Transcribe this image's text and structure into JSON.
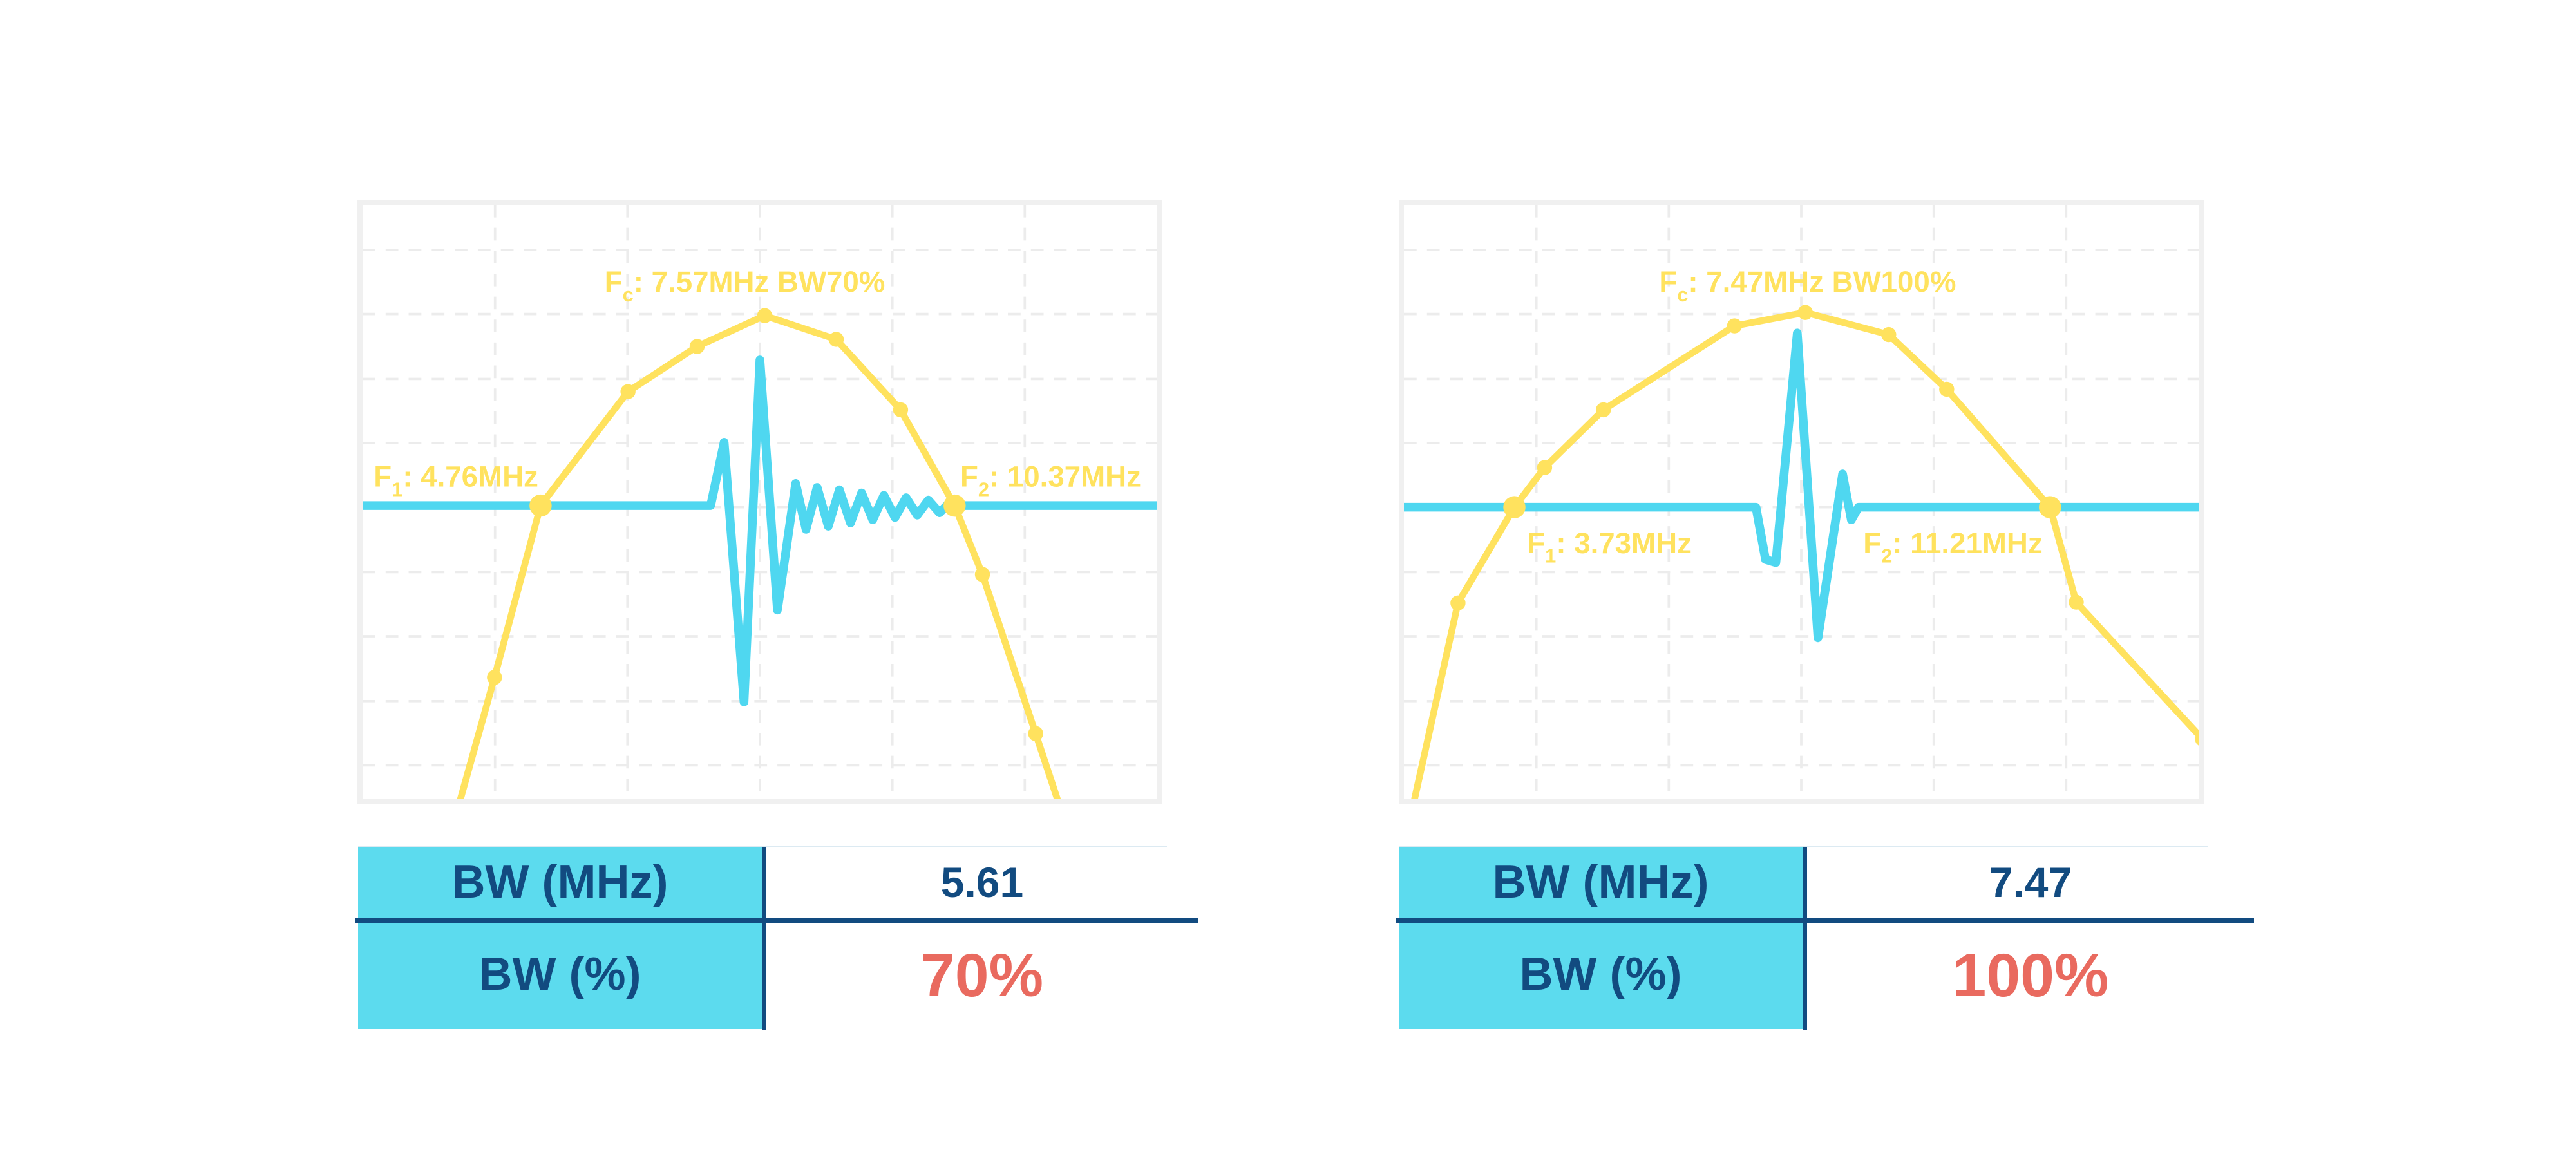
{
  "page": {
    "background": "#FFFFFF",
    "description_colors": {
      "spectrum_yellow": "#FFE25E",
      "waveform_cyan": "#4FD7F0",
      "table_header_cyan": "#5CDBEE",
      "navy_text": "#124B80",
      "percent_red": "#E96A5F",
      "grid_gray": "#ECECEC",
      "frame_gray": "#F0F0F0",
      "table_topline": "#DCEAF2"
    }
  },
  "chart_data": [
    {
      "id": "bw70",
      "type": "line",
      "title": "Fc: 7.57MHz BW70%",
      "x_unit": "MHz",
      "fc_mhz": 7.57,
      "f1_mhz": 4.76,
      "f2_mhz": 10.37,
      "bw_mhz": 5.61,
      "bw_percent": 70,
      "coord_space": "plot-area fractions scaled to 1000(w) x 750(h), y down",
      "series": [
        {
          "name": "spectrum",
          "role": "yellow-curve-with-dots"
        },
        {
          "name": "pulse-echo waveform",
          "role": "cyan-trace-on--6dB-line"
        }
      ],
      "spectrum_points": [
        [
          120,
          762,
          0
        ],
        [
          166,
          597,
          1
        ],
        [
          224,
          380,
          2
        ],
        [
          334,
          236,
          1
        ],
        [
          421,
          179,
          1
        ],
        [
          506,
          140,
          1
        ],
        [
          596,
          170,
          1
        ],
        [
          677,
          259,
          1
        ],
        [
          745,
          380,
          2
        ],
        [
          780,
          467,
          1
        ],
        [
          847,
          668,
          1
        ],
        [
          880,
          768,
          0
        ]
      ],
      "pulse_points": [
        [
          0,
          380
        ],
        [
          438,
          380
        ],
        [
          455,
          300
        ],
        [
          480,
          628
        ],
        [
          500,
          196
        ],
        [
          522,
          512
        ],
        [
          545,
          352
        ],
        [
          558,
          410
        ],
        [
          572,
          357
        ],
        [
          586,
          406
        ],
        [
          600,
          360
        ],
        [
          614,
          402
        ],
        [
          628,
          364
        ],
        [
          642,
          398
        ],
        [
          656,
          367
        ],
        [
          670,
          395
        ],
        [
          684,
          370
        ],
        [
          698,
          392
        ],
        [
          712,
          373
        ],
        [
          726,
          389
        ],
        [
          738,
          377
        ],
        [
          745,
          380
        ],
        [
          1000,
          380
        ]
      ],
      "annotations": {
        "fc": {
          "pre": "F",
          "sub": "c",
          "rest": ": 7.57MHz BW70%",
          "x": 481,
          "y": 110,
          "anchor": "middle"
        },
        "f1": {
          "pre": "F",
          "sub": "1",
          "rest": ": 4.76MHz",
          "x": 14,
          "y": 356,
          "anchor": "start"
        },
        "f2": {
          "pre": "F",
          "sub": "2",
          "rest": ": 10.37MHz",
          "x": 752,
          "y": 356,
          "anchor": "start"
        }
      },
      "table": {
        "rows": [
          {
            "label": "BW (MHz)",
            "value": "5.61",
            "highlight": false
          },
          {
            "label": "BW (%)",
            "value": "70%",
            "highlight": true
          }
        ]
      }
    },
    {
      "id": "bw100",
      "type": "line",
      "title": "Fc: 7.47MHz BW100%",
      "x_unit": "MHz",
      "fc_mhz": 7.47,
      "f1_mhz": 3.73,
      "f2_mhz": 11.21,
      "bw_mhz": 7.47,
      "bw_percent": 100,
      "coord_space": "plot-area fractions scaled to 1000(w) x 750(h), y down",
      "series": [
        {
          "name": "spectrum",
          "role": "yellow-curve-with-dots"
        },
        {
          "name": "pulse-echo waveform",
          "role": "cyan-trace-on--6dB-line"
        }
      ],
      "spectrum_points": [
        [
          8,
          775,
          0
        ],
        [
          68,
          503,
          1
        ],
        [
          139,
          382,
          2
        ],
        [
          177,
          332,
          1
        ],
        [
          251,
          259,
          1
        ],
        [
          416,
          153,
          1
        ],
        [
          505,
          136,
          1
        ],
        [
          610,
          164,
          1
        ],
        [
          683,
          233,
          1
        ],
        [
          813,
          382,
          2
        ],
        [
          846,
          502,
          1
        ],
        [
          1005,
          675,
          1
        ]
      ],
      "pulse_points": [
        [
          0,
          382
        ],
        [
          443,
          382
        ],
        [
          455,
          448
        ],
        [
          468,
          452
        ],
        [
          495,
          162
        ],
        [
          521,
          547
        ],
        [
          552,
          340
        ],
        [
          563,
          398
        ],
        [
          572,
          382
        ],
        [
          1000,
          382
        ]
      ],
      "annotations": {
        "fc": {
          "pre": "F",
          "sub": "c",
          "rest": ": 7.47MHz BW100%",
          "x": 508,
          "y": 110,
          "anchor": "middle"
        },
        "f1": {
          "pre": "F",
          "sub": "1",
          "rest": ": 3.73MHz",
          "x": 155,
          "y": 440,
          "anchor": "start"
        },
        "f2": {
          "pre": "F",
          "sub": "2",
          "rest": ": 11.21MHz",
          "x": 578,
          "y": 440,
          "anchor": "start"
        }
      },
      "table": {
        "rows": [
          {
            "label": "BW (MHz)",
            "value": "7.47",
            "highlight": false
          },
          {
            "label": "BW (%)",
            "value": "100%",
            "highlight": true
          }
        ]
      }
    }
  ]
}
